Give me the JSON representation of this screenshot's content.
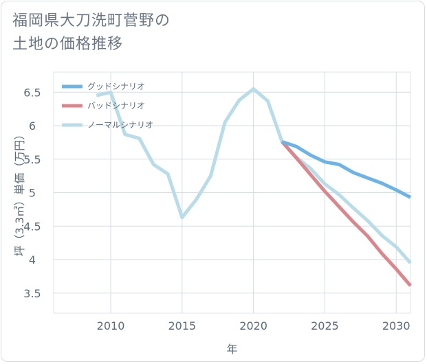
{
  "title": {
    "line1": "福岡県大刀洗町菅野の",
    "line2": "土地の価格推移"
  },
  "chart_data": {
    "type": "line",
    "xlabel": "年",
    "ylabel": "坪（3.3㎡）単価（万円）",
    "xlim": [
      2006,
      2031
    ],
    "ylim": [
      3.2,
      6.8
    ],
    "xticks": [
      2010,
      2015,
      2020,
      2025,
      2030
    ],
    "yticks": [
      3.5,
      4,
      4.5,
      5,
      5.5,
      6,
      6.5
    ],
    "ytick_labels": [
      "3.5",
      "4",
      "4.5",
      "5",
      "5.5",
      "6",
      "6.5"
    ],
    "grid": true,
    "legend_position": "top-left",
    "series": [
      {
        "name": "グッドシナリオ",
        "color": "#6cb4e8",
        "x": [
          2022,
          2023,
          2024,
          2025,
          2026,
          2027,
          2028,
          2029,
          2030,
          2031
        ],
        "y": [
          5.76,
          5.69,
          5.56,
          5.46,
          5.42,
          5.3,
          5.22,
          5.14,
          5.04,
          4.93
        ]
      },
      {
        "name": "バッドシナリオ",
        "color": "#d9868c",
        "x": [
          2022,
          2023,
          2024,
          2025,
          2026,
          2027,
          2028,
          2029,
          2030,
          2031
        ],
        "y": [
          5.76,
          5.52,
          5.27,
          5.02,
          4.79,
          4.56,
          4.35,
          4.09,
          3.86,
          3.61
        ]
      },
      {
        "name": "ノーマルシナリオ",
        "color": "#b9dcea",
        "x": [
          2009,
          2010,
          2011,
          2012,
          2013,
          2014,
          2015,
          2016,
          2017,
          2018,
          2019,
          2020,
          2021,
          2022,
          2023,
          2024,
          2025,
          2026,
          2027,
          2028,
          2029,
          2030,
          2031
        ],
        "y": [
          6.45,
          6.5,
          5.87,
          5.81,
          5.42,
          5.28,
          4.63,
          4.9,
          5.25,
          6.05,
          6.38,
          6.55,
          6.37,
          5.76,
          5.53,
          5.36,
          5.13,
          4.97,
          4.77,
          4.58,
          4.36,
          4.19,
          3.95
        ]
      }
    ]
  }
}
